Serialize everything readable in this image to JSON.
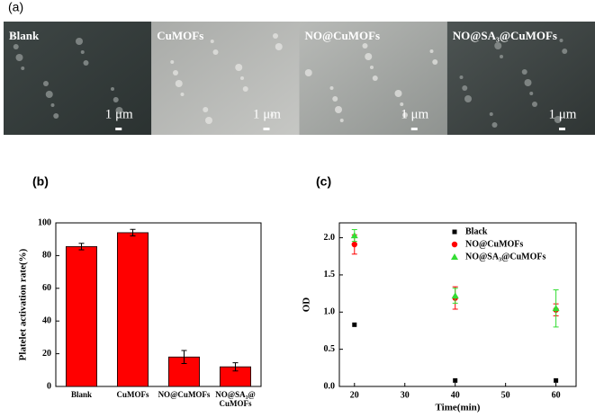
{
  "panel_a": {
    "label": "(a)",
    "images": [
      {
        "label": "Blank",
        "scale": "1 μm"
      },
      {
        "label": "CuMOFs",
        "scale": "1 μm"
      },
      {
        "label": "NO@CuMOFs",
        "scale": "1 μm"
      },
      {
        "label": "NO@SA₃@CuMOFs",
        "scale": "1 μm"
      }
    ]
  },
  "chart_data": [
    {
      "type": "bar",
      "label": "(b)",
      "ylabel": "Platelet activation rate(%)",
      "categories": [
        "Blank",
        "CuMOFs",
        "NO@CuMOFs",
        "NO@SA₃@\nCuMOFs"
      ],
      "values": [
        85.5,
        94,
        18,
        12
      ],
      "errors": [
        2,
        2,
        4,
        2.5
      ],
      "color": "#ff0000",
      "ylim": [
        0,
        100
      ],
      "yticks": [
        0,
        20,
        40,
        60,
        80,
        100
      ],
      "grid": false
    },
    {
      "type": "scatter",
      "label": "(c)",
      "xlabel": "Time(min)",
      "ylabel": "OD",
      "x": [
        20,
        40,
        60
      ],
      "xlim": [
        17,
        64
      ],
      "xticks": [
        20,
        30,
        40,
        50,
        60
      ],
      "ylim": [
        0,
        2.2
      ],
      "yticks": [
        {
          "value": 0,
          "label": "0.0"
        },
        {
          "value": 0.5,
          "label": "0.5"
        },
        {
          "value": 1,
          "label": "1.0"
        },
        {
          "value": 1.5,
          "label": "1.5"
        },
        {
          "value": 2,
          "label": "2.0"
        }
      ],
      "legend": "upper right",
      "grid": false,
      "series": [
        {
          "name": "Black",
          "color": "#000000",
          "marker": "square",
          "values": [
            0.83,
            0.08,
            0.08
          ]
        },
        {
          "name": "NO@CuMOFs",
          "color": "#ff0000",
          "marker": "circle",
          "values": [
            1.91,
            1.19,
            1.03
          ],
          "errors": [
            0.13,
            0.15,
            0.08
          ]
        },
        {
          "name": "NO@SA₃@CuMOFs",
          "color": "#33dd33",
          "marker": "triangle",
          "values": [
            2.03,
            1.22,
            1.05
          ],
          "errors": [
            0.08,
            0.1,
            0.25
          ]
        }
      ]
    }
  ]
}
